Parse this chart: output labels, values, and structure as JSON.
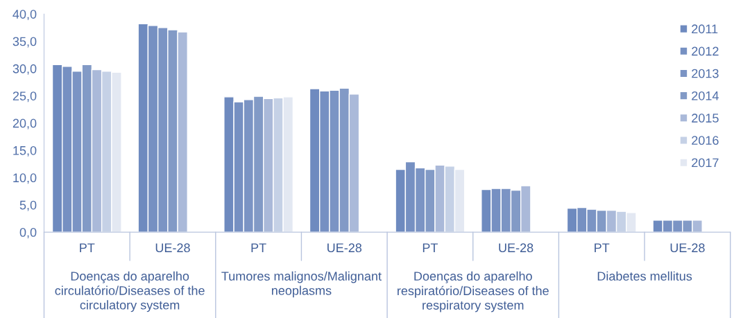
{
  "chart_data": {
    "type": "bar",
    "categories": [
      "PT",
      "UE-28",
      "PT",
      "UE-28",
      "PT",
      "UE-28",
      "PT",
      "UE-28"
    ],
    "annotations": [
      "Doenças do aparelho circulatório/Diseases of the circulatory system",
      "Tumores malignos/Malignant neoplasms",
      "Doenças do aparelho respiratório/Diseases of the respiratory system",
      "Diabetes mellitus"
    ],
    "series": [
      {
        "name": "2011",
        "color": "#6e8abf",
        "values": [
          30.7,
          38.2,
          24.8,
          26.3,
          11.5,
          7.8,
          4.4,
          2.2
        ]
      },
      {
        "name": "2012",
        "color": "#7690c2",
        "values": [
          30.4,
          37.9,
          23.9,
          25.9,
          12.9,
          8.0,
          4.5,
          2.2
        ]
      },
      {
        "name": "2013",
        "color": "#7b94c4",
        "values": [
          29.5,
          37.5,
          24.3,
          26.0,
          11.8,
          8.0,
          4.2,
          2.2
        ]
      },
      {
        "name": "2014",
        "color": "#829ac6",
        "values": [
          30.7,
          37.1,
          24.9,
          26.4,
          11.5,
          7.7,
          4.0,
          2.2
        ]
      },
      {
        "name": "2015",
        "color": "#aab9d9",
        "values": [
          29.8,
          36.7,
          24.5,
          25.3,
          12.3,
          8.5,
          4.0,
          2.2
        ]
      },
      {
        "name": "2016",
        "color": "#c5d1e6",
        "values": [
          29.5,
          null,
          24.6,
          null,
          12.1,
          null,
          3.8,
          null
        ]
      },
      {
        "name": "2017",
        "color": "#e3e8f2",
        "values": [
          29.3,
          null,
          24.8,
          null,
          11.5,
          null,
          3.6,
          null
        ]
      }
    ],
    "ylim": [
      0,
      40
    ],
    "yticks": [
      {
        "value": 0,
        "label": "0,0"
      },
      {
        "value": 5,
        "label": "5,0"
      },
      {
        "value": 10,
        "label": "10,0"
      },
      {
        "value": 15,
        "label": "15,0"
      },
      {
        "value": 20,
        "label": "20,0"
      },
      {
        "value": 25,
        "label": "25,0"
      },
      {
        "value": 30,
        "label": "30,0"
      },
      {
        "value": 35,
        "label": "35,0"
      },
      {
        "value": 40,
        "label": "40,0"
      }
    ],
    "legend": "right",
    "grid": false
  }
}
